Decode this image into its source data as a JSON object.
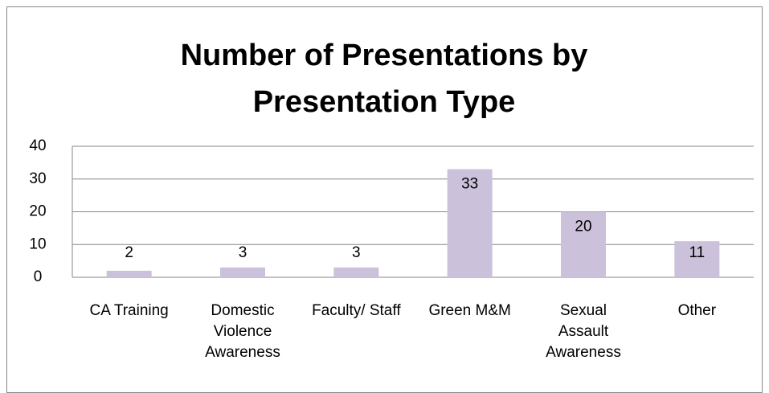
{
  "chart_data": {
    "type": "bar",
    "title": "Number of Presentations by Presentation Type",
    "categories": [
      "CA Training",
      "Domestic Violence Awareness",
      "Faculty/ Staff",
      "Green M&M",
      "Sexual Assault Awareness",
      "Other"
    ],
    "values": [
      2,
      3,
      3,
      33,
      20,
      11
    ],
    "color": "#ccc1da",
    "ylim": [
      0,
      40
    ],
    "yticks": [
      0,
      10,
      20,
      30,
      40
    ],
    "grid": true
  }
}
